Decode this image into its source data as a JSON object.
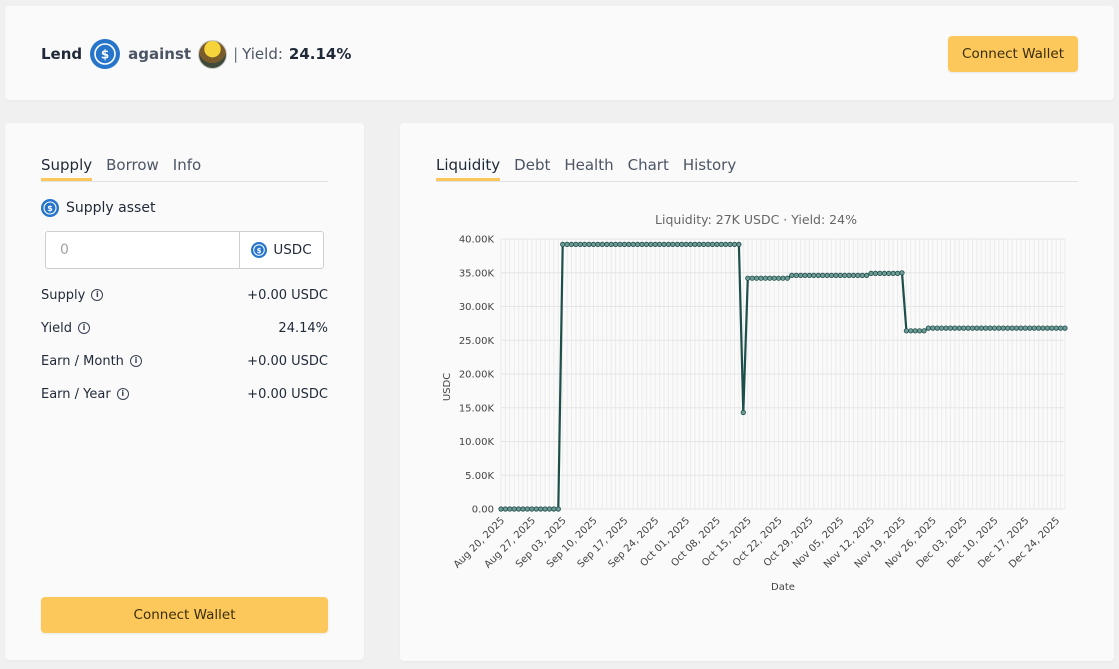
{
  "header": {
    "lend_label": "Lend",
    "against_label": "against",
    "pipe": "|",
    "yield_label": "Yield:",
    "yield_value": "24.14%",
    "connect_label": "Connect Wallet",
    "lend_asset_icon": "usdc-icon",
    "collateral_icon": "collateral-avatar-icon"
  },
  "left": {
    "tabs": [
      {
        "label": "Supply",
        "active": true
      },
      {
        "label": "Borrow",
        "active": false
      },
      {
        "label": "Info",
        "active": false
      }
    ],
    "supply_asset_label": "Supply asset",
    "amount": {
      "value": "",
      "placeholder": "0"
    },
    "asset_symbol": "USDC",
    "stats": [
      {
        "label": "Supply",
        "value": "+0.00 USDC"
      },
      {
        "label": "Yield",
        "value": "24.14%"
      },
      {
        "label": "Earn / Month",
        "value": "+0.00 USDC"
      },
      {
        "label": "Earn / Year",
        "value": "+0.00 USDC"
      }
    ],
    "connect_label": "Connect Wallet"
  },
  "right": {
    "tabs": [
      {
        "label": "Liquidity",
        "active": true
      },
      {
        "label": "Debt",
        "active": false
      },
      {
        "label": "Health",
        "active": false
      },
      {
        "label": "Chart",
        "active": false
      },
      {
        "label": "History",
        "active": false
      }
    ]
  },
  "colors": {
    "accent": "#fcc85b",
    "usdc": "#2775ca",
    "line": "#1d4f4a"
  },
  "chart_data": {
    "type": "line",
    "title": "Liquidity: 27K USDC · Yield: 24%",
    "xlabel": "Date",
    "ylabel": "USDC",
    "ylim": [
      0,
      40000
    ],
    "grid": true,
    "y_ticks": [
      "0.00",
      "5.00K",
      "10.00K",
      "15.00K",
      "20.00K",
      "25.00K",
      "30.00K",
      "35.00K",
      "40.00K"
    ],
    "x_ticks": [
      "Aug 20, 2025",
      "Aug 27, 2025",
      "Sep 03, 2025",
      "Sep 10, 2025",
      "Sep 17, 2025",
      "Sep 24, 2025",
      "Oct 01, 2025",
      "Oct 08, 2025",
      "Oct 15, 2025",
      "Oct 22, 2025",
      "Oct 29, 2025",
      "Nov 05, 2025",
      "Nov 12, 2025",
      "Nov 19, 2025",
      "Nov 26, 2025",
      "Dec 03, 2025",
      "Dec 10, 2025",
      "Dec 17, 2025",
      "Dec 24, 2025"
    ],
    "x_start": "2025-08-20",
    "series": [
      {
        "points": [
          [
            "2025-08-20",
            0
          ],
          [
            "2025-09-02",
            0
          ],
          [
            "2025-09-03",
            39200
          ],
          [
            "2025-10-13",
            39200
          ],
          [
            "2025-10-14",
            14300
          ],
          [
            "2025-10-15",
            34200
          ],
          [
            "2025-10-24",
            34200
          ],
          [
            "2025-10-25",
            34600
          ],
          [
            "2025-11-11",
            34600
          ],
          [
            "2025-11-12",
            34900
          ],
          [
            "2025-11-19",
            35000
          ],
          [
            "2025-11-20",
            26400
          ],
          [
            "2025-11-24",
            26400
          ],
          [
            "2025-11-25",
            26800
          ],
          [
            "2025-12-26",
            26800
          ]
        ]
      }
    ]
  }
}
